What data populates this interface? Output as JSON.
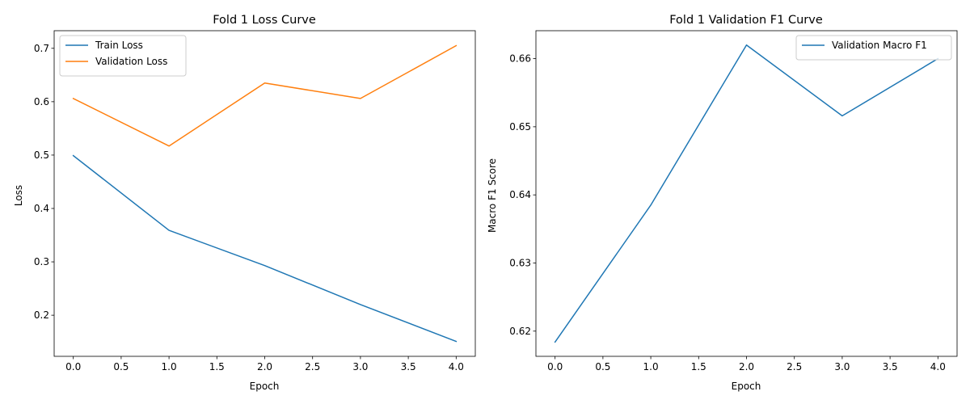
{
  "chart_data": [
    {
      "type": "line",
      "title": "Fold 1 Loss Curve",
      "xlabel": "Epoch",
      "ylabel": "Loss",
      "x": [
        0,
        1,
        2,
        3,
        4
      ],
      "xlim": [
        -0.2,
        4.2
      ],
      "ylim": [
        0.123,
        0.733
      ],
      "xticks": [
        0.0,
        0.5,
        1.0,
        1.5,
        2.0,
        2.5,
        3.0,
        3.5,
        4.0
      ],
      "xtick_labels": [
        "0.0",
        "0.5",
        "1.0",
        "1.5",
        "2.0",
        "2.5",
        "3.0",
        "3.5",
        "4.0"
      ],
      "yticks": [
        0.2,
        0.3,
        0.4,
        0.5,
        0.6,
        0.7
      ],
      "ytick_labels": [
        "0.2",
        "0.3",
        "0.4",
        "0.5",
        "0.6",
        "0.7"
      ],
      "grid": false,
      "legend_position": "upper left",
      "series": [
        {
          "name": "Train Loss",
          "color": "#1f77b4",
          "values": [
            0.499,
            0.359,
            0.293,
            0.22,
            0.151
          ]
        },
        {
          "name": "Validation Loss",
          "color": "#ff7f0e",
          "values": [
            0.606,
            0.517,
            0.635,
            0.606,
            0.705
          ]
        }
      ]
    },
    {
      "type": "line",
      "title": "Fold 1 Validation F1 Curve",
      "xlabel": "Epoch",
      "ylabel": "Macro F1 Score",
      "x": [
        0,
        1,
        2,
        3,
        4
      ],
      "xlim": [
        -0.2,
        4.2
      ],
      "ylim": [
        0.6163,
        0.6641
      ],
      "xticks": [
        0.0,
        0.5,
        1.0,
        1.5,
        2.0,
        2.5,
        3.0,
        3.5,
        4.0
      ],
      "xtick_labels": [
        "0.0",
        "0.5",
        "1.0",
        "1.5",
        "2.0",
        "2.5",
        "3.0",
        "3.5",
        "4.0"
      ],
      "yticks": [
        0.62,
        0.63,
        0.64,
        0.65,
        0.66
      ],
      "ytick_labels": [
        "0.62",
        "0.63",
        "0.64",
        "0.65",
        "0.66"
      ],
      "grid": false,
      "legend_position": "upper right",
      "series": [
        {
          "name": "Validation Macro F1",
          "color": "#1f77b4",
          "values": [
            0.6184,
            0.6385,
            0.662,
            0.6516,
            0.66
          ]
        }
      ]
    }
  ]
}
